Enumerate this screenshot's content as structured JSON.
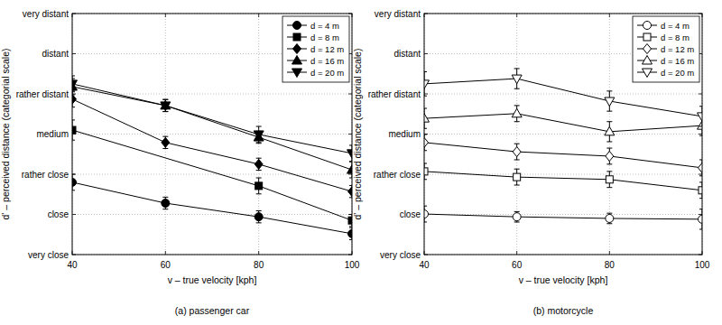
{
  "chart_data": [
    {
      "type": "line",
      "title": "(a) passenger car",
      "x_label": "v – true velocity [kph]",
      "y_label": "d' – perceived distance (categorial scale)",
      "x": [
        40,
        60,
        80,
        100
      ],
      "xlim": [
        40,
        100
      ],
      "xticks": [
        40,
        60,
        80,
        100
      ],
      "ylim": [
        1,
        7
      ],
      "yticks": [
        {
          "value": 1,
          "label": "very close"
        },
        {
          "value": 2,
          "label": "close"
        },
        {
          "value": 3,
          "label": "rather close"
        },
        {
          "value": 4,
          "label": "medium"
        },
        {
          "value": 5,
          "label": "rather distant"
        },
        {
          "value": 6,
          "label": "distant"
        },
        {
          "value": 7,
          "label": "very distant"
        }
      ],
      "grid": true,
      "legend": "upper right",
      "series": [
        {
          "name": "d = 4 m",
          "color": "#000000",
          "marker": "circle",
          "values": [
            2.8,
            2.28,
            1.94,
            1.52
          ],
          "errors": [
            0.2,
            0.15,
            0.15,
            0.15
          ]
        },
        {
          "name": "d = 8 m",
          "color": "#000000",
          "marker": "square",
          "x": [
            40,
            80,
            100
          ],
          "values": [
            4.1,
            2.71,
            1.85
          ],
          "errors": [
            0.25,
            0.2,
            0.15
          ]
        },
        {
          "name": "d = 12 m",
          "color": "#000000",
          "marker": "diamond",
          "values": [
            4.87,
            3.79,
            3.25,
            2.57
          ],
          "errors": [
            0.2,
            0.15,
            0.15,
            0.15
          ]
        },
        {
          "name": "d = 16 m",
          "color": "#000000",
          "marker": "triangle-up",
          "values": [
            5.18,
            4.71,
            3.92,
            3.11
          ],
          "errors": [
            0.2,
            0.15,
            0.15,
            0.2
          ]
        },
        {
          "name": "d = 20 m",
          "color": "#000000",
          "marker": "triangle-down",
          "values": [
            5.25,
            4.71,
            3.99,
            3.52
          ],
          "errors": [
            0.2,
            0.15,
            0.2,
            0.2
          ]
        }
      ]
    },
    {
      "type": "line",
      "title": "(b) motorcycle",
      "x_label": "v – true velocity [kph]",
      "y_label": "d' – perceived distance (categorial scale)",
      "x": [
        40,
        60,
        80,
        100
      ],
      "xlim": [
        40,
        100
      ],
      "xticks": [
        40,
        60,
        80,
        100
      ],
      "ylim": [
        1,
        7
      ],
      "yticks": [
        {
          "value": 1,
          "label": "very close"
        },
        {
          "value": 2,
          "label": "close"
        },
        {
          "value": 3,
          "label": "rather close"
        },
        {
          "value": 4,
          "label": "medium"
        },
        {
          "value": 5,
          "label": "rather distant"
        },
        {
          "value": 6,
          "label": "distant"
        },
        {
          "value": 7,
          "label": "very distant"
        }
      ],
      "grid": true,
      "legend": "upper right",
      "series": [
        {
          "name": "d = 4 m",
          "color": "#000000",
          "marker": "open-circle",
          "values": [
            2.01,
            1.94,
            1.9,
            1.88
          ],
          "errors": [
            0.2,
            0.13,
            0.13,
            0.25
          ]
        },
        {
          "name": "d = 8 m",
          "color": "#000000",
          "marker": "open-square",
          "values": [
            3.07,
            2.93,
            2.87,
            2.6
          ],
          "errors": [
            0.2,
            0.2,
            0.2,
            0.2
          ]
        },
        {
          "name": "d = 12 m",
          "color": "#000000",
          "marker": "open-diamond",
          "values": [
            3.79,
            3.56,
            3.45,
            3.16
          ],
          "errors": [
            0.2,
            0.2,
            0.2,
            0.2
          ]
        },
        {
          "name": "d = 16 m",
          "color": "#000000",
          "marker": "open-triangle-up",
          "values": [
            4.39,
            4.51,
            4.06,
            4.21
          ],
          "errors": [
            0.25,
            0.2,
            0.25,
            0.25
          ]
        },
        {
          "name": "d = 20 m",
          "color": "#000000",
          "marker": "open-triangle-down",
          "values": [
            5.25,
            5.38,
            4.82,
            4.44
          ],
          "errors": [
            0.3,
            0.25,
            0.25,
            0.25
          ]
        }
      ]
    }
  ]
}
